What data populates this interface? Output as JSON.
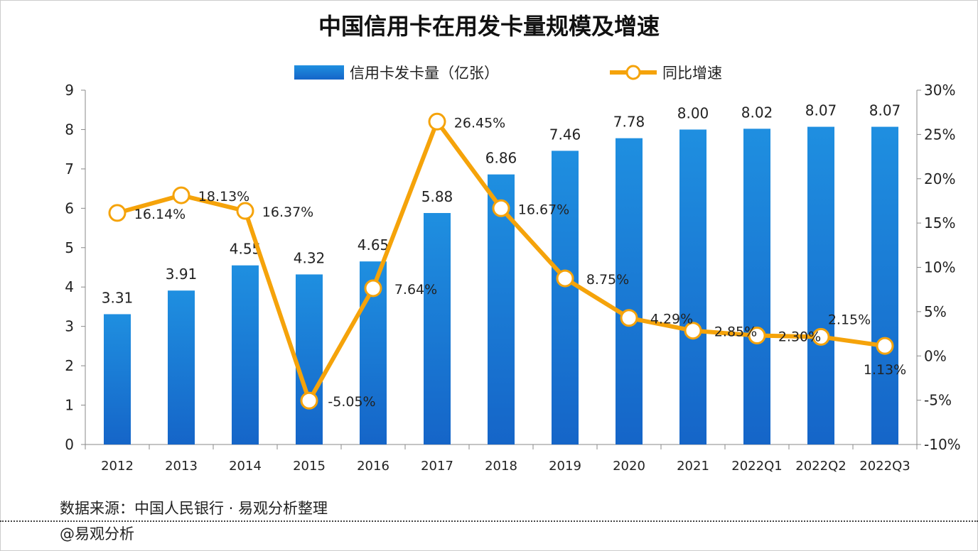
{
  "chart_data": {
    "type": "bar+line",
    "title": "中国信用卡在用发卡量规模及增速",
    "categories": [
      "2012",
      "2013",
      "2014",
      "2015",
      "2016",
      "2017",
      "2018",
      "2019",
      "2020",
      "2021",
      "2022Q1",
      "2022Q2",
      "2022Q3"
    ],
    "series": [
      {
        "name": "信用卡发卡量（亿张）",
        "type": "bar",
        "axis": "left",
        "color": "#1a7fd4",
        "values": [
          3.31,
          3.91,
          4.55,
          4.32,
          4.65,
          5.88,
          6.86,
          7.46,
          7.78,
          8.0,
          8.02,
          8.07,
          8.07
        ],
        "labels": [
          "3.31",
          "3.91",
          "4.55",
          "4.32",
          "4.65",
          "5.88",
          "6.86",
          "7.46",
          "7.78",
          "8.00",
          "8.02",
          "8.07",
          "8.07"
        ]
      },
      {
        "name": "同比增速",
        "type": "line",
        "axis": "right",
        "color": "#f5a30a",
        "values": [
          16.14,
          18.13,
          16.37,
          -5.05,
          7.64,
          26.45,
          16.67,
          8.75,
          4.29,
          2.85,
          2.3,
          2.15,
          1.13
        ],
        "labels": [
          "16.14%",
          "18.13%",
          "16.37%",
          "-5.05%",
          "7.64%",
          "26.45%",
          "16.67%",
          "8.75%",
          "4.29%",
          "2.85%",
          "2.30%",
          "2.15%",
          "1.13%"
        ]
      }
    ],
    "y_left": {
      "lim": [
        0,
        9
      ],
      "ticks": [
        "0",
        "1",
        "2",
        "3",
        "4",
        "5",
        "6",
        "7",
        "8",
        "9"
      ]
    },
    "y_right": {
      "lim": [
        -10,
        30
      ],
      "ticks": [
        "-10%",
        "-5%",
        "0%",
        "5%",
        "10%",
        "15%",
        "20%",
        "25%",
        "30%"
      ]
    },
    "legend": "top",
    "grid": false
  },
  "footer": {
    "source": "数据来源：中国人民银行 · 易观分析整理",
    "credit": "@易观分析"
  }
}
